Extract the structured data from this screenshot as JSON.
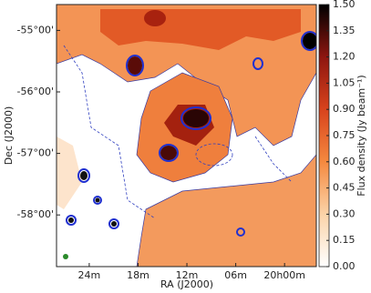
{
  "chart_data": {
    "type": "image",
    "x_label": "RA (J2000)",
    "y_label": "Dec (J2000)",
    "colorbar_label": "Flux density (Jy beam⁻¹)",
    "xlim": [
      20.467,
      19.935
    ],
    "xticks": [
      {
        "value": 20.4,
        "label": "24m"
      },
      {
        "value": 20.3,
        "label": "18m"
      },
      {
        "value": 20.2,
        "label": "12m"
      },
      {
        "value": 20.1,
        "label": "06m"
      },
      {
        "value": 20.0,
        "label": "20h00m"
      }
    ],
    "ylim": [
      -58.84,
      -54.58
    ],
    "yticks": [
      {
        "value": -55,
        "label": "-55°00'"
      },
      {
        "value": -56,
        "label": "-56°00'"
      },
      {
        "value": -57,
        "label": "-57°00'"
      },
      {
        "value": -58,
        "label": "-58°00'"
      }
    ],
    "clim": [
      0,
      1.5
    ],
    "cticks": [
      {
        "value": 0,
        "label": "0.00"
      },
      {
        "value": 0.15,
        "label": "0.15"
      },
      {
        "value": 0.3,
        "label": "0.30"
      },
      {
        "value": 0.45,
        "label": "0.45"
      },
      {
        "value": 0.6,
        "label": "0.60"
      },
      {
        "value": 0.75,
        "label": "0.75"
      },
      {
        "value": 0.9,
        "label": "0.90"
      },
      {
        "value": 1.05,
        "label": "1.05"
      },
      {
        "value": 1.2,
        "label": "1.20"
      },
      {
        "value": 1.35,
        "label": "1.35"
      },
      {
        "value": 1.5,
        "label": "1.50"
      }
    ]
  }
}
